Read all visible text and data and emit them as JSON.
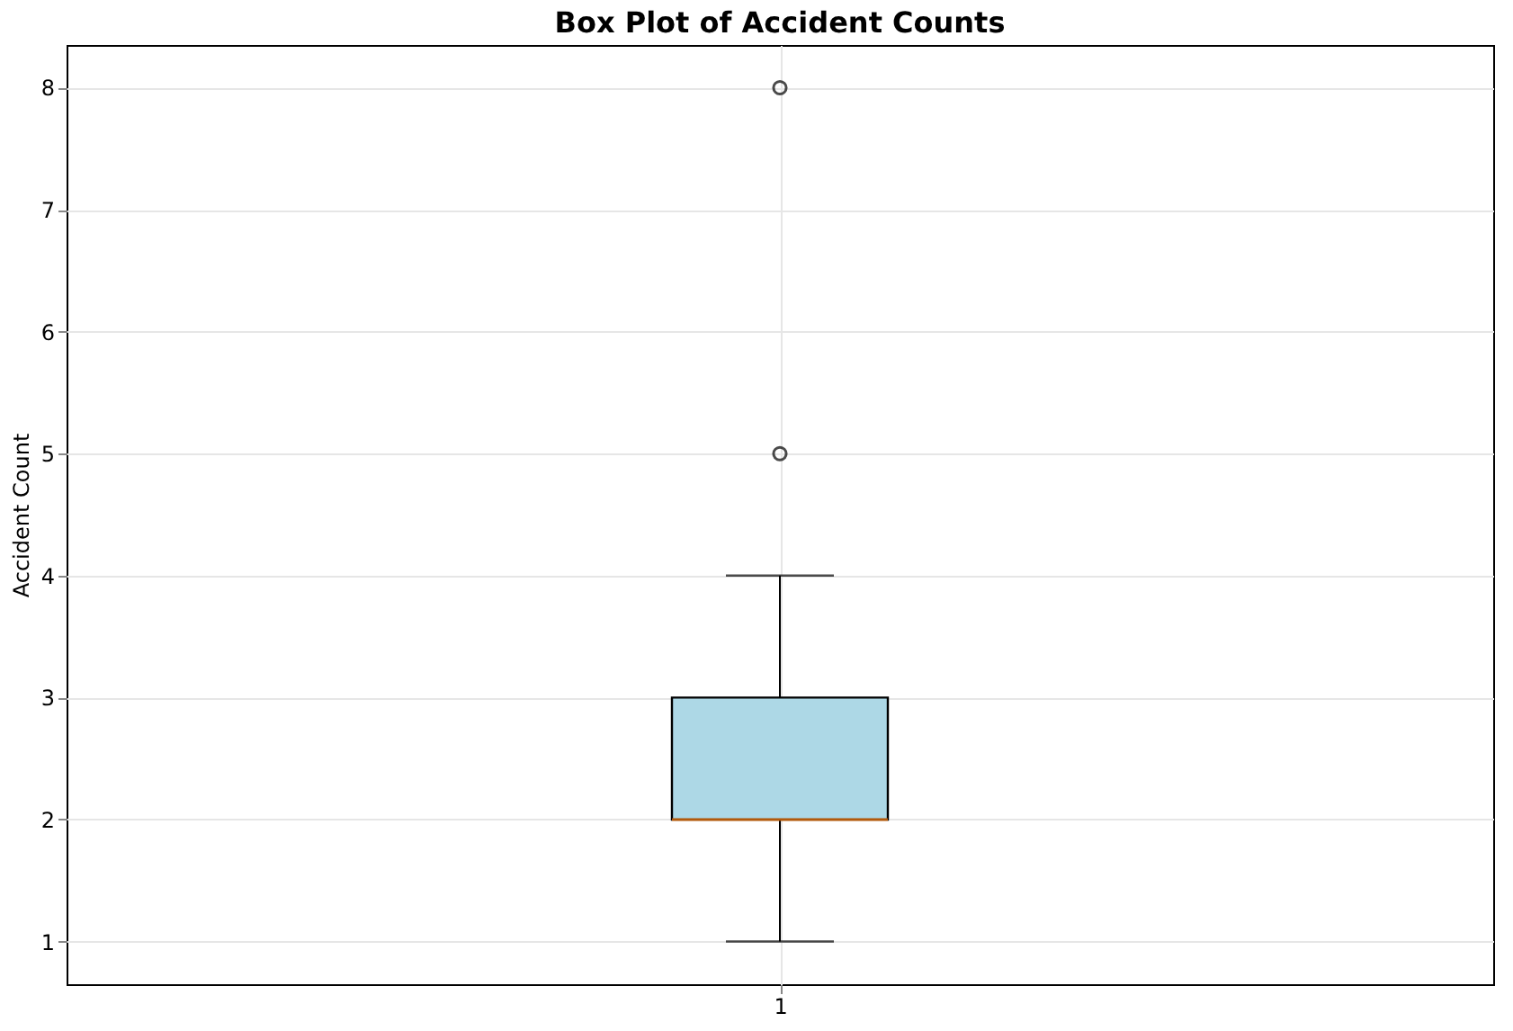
{
  "chart_data": {
    "type": "box",
    "title": "Box Plot of Accident Counts",
    "ylabel": "Accident Count",
    "categories": [
      "1"
    ],
    "series": [
      {
        "color": "#add8e6",
        "boxes": [
          {
            "low": 1,
            "q1": 2,
            "median": 2,
            "q3": 3,
            "high": 4,
            "outliers": [
              5,
              8
            ]
          }
        ]
      }
    ],
    "ylim": [
      0.65,
      8.35
    ],
    "yticks": [
      1,
      2,
      3,
      4,
      5,
      6,
      7,
      8
    ],
    "grid": true
  }
}
